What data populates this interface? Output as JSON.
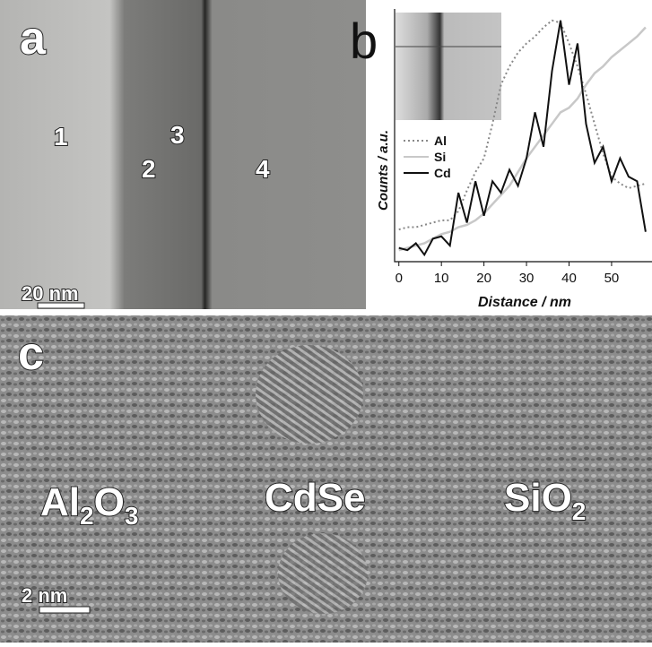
{
  "panel_a": {
    "label": "a",
    "regions": [
      "1",
      "2",
      "3",
      "4"
    ],
    "scale_bar": "20 nm"
  },
  "chart_data": {
    "type": "line",
    "panel_label": "b",
    "xlabel": "Distance / nm",
    "ylabel": "Counts / a.u.",
    "x": [
      0,
      2,
      4,
      6,
      8,
      10,
      12,
      14,
      16,
      18,
      20,
      22,
      24,
      26,
      28,
      30,
      32,
      34,
      36,
      38,
      40,
      42,
      44,
      46,
      48,
      50,
      52,
      54,
      56,
      58
    ],
    "series": [
      {
        "name": "Al",
        "color": "#888888",
        "dash": "dotted",
        "values": [
          0.09,
          0.1,
          0.1,
          0.11,
          0.12,
          0.13,
          0.13,
          0.17,
          0.26,
          0.34,
          0.4,
          0.55,
          0.72,
          0.8,
          0.86,
          0.9,
          0.93,
          0.97,
          1.0,
          0.99,
          0.9,
          0.8,
          0.68,
          0.55,
          0.42,
          0.32,
          0.29,
          0.27,
          0.28,
          0.29
        ]
      },
      {
        "name": "Si",
        "color": "#c8c8c8",
        "dash": "solid",
        "values": [
          0.0,
          0.01,
          0.02,
          0.03,
          0.05,
          0.07,
          0.08,
          0.1,
          0.11,
          0.13,
          0.16,
          0.2,
          0.24,
          0.28,
          0.34,
          0.4,
          0.45,
          0.5,
          0.55,
          0.6,
          0.62,
          0.66,
          0.72,
          0.77,
          0.8,
          0.84,
          0.87,
          0.9,
          0.93,
          0.97
        ]
      },
      {
        "name": "Cd",
        "color": "#111111",
        "dash": "solid",
        "values": [
          0.01,
          0.0,
          0.03,
          -0.02,
          0.05,
          0.06,
          0.02,
          0.25,
          0.12,
          0.3,
          0.15,
          0.3,
          0.25,
          0.35,
          0.28,
          0.4,
          0.6,
          0.45,
          0.78,
          1.0,
          0.72,
          0.9,
          0.55,
          0.38,
          0.45,
          0.3,
          0.4,
          0.32,
          0.3,
          0.08
        ]
      }
    ],
    "xlim": [
      -1,
      59.5
    ],
    "ylim": [
      -0.05,
      1.05
    ],
    "xticks": [
      0,
      10,
      20,
      30,
      40,
      50
    ]
  },
  "panel_c": {
    "label": "c",
    "materials": [
      [
        "Al",
        "2",
        "O",
        "3"
      ],
      [
        "CdSe"
      ],
      [
        "SiO",
        "2"
      ]
    ],
    "scale_bar": "2 nm"
  }
}
